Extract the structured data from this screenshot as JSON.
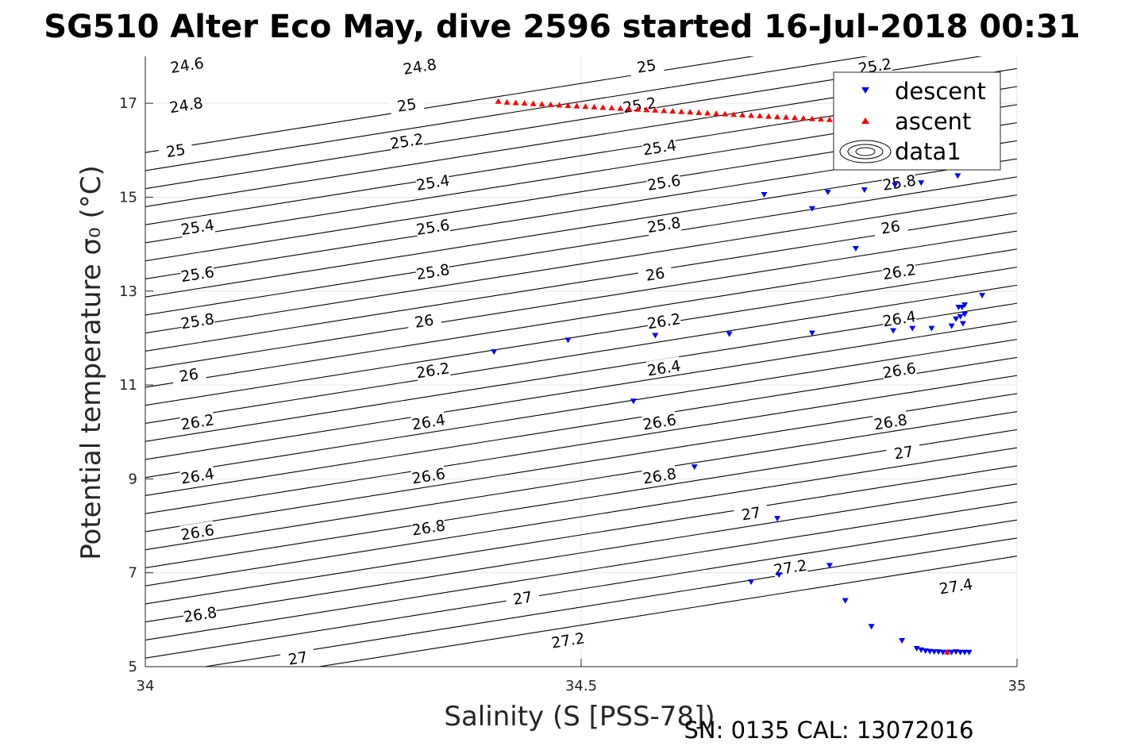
{
  "chart_data": {
    "type": "scatter",
    "title": "SG510 Alter Eco May, dive 2596 started 16-Jul-2018 00:31",
    "xlabel": "Salinity (S [PSS-78])",
    "ylabel": "Potential temperature σ₀ (°C)",
    "xlim": [
      34,
      35
    ],
    "ylim": [
      5,
      18
    ],
    "xticks": [
      "34",
      "34.5",
      "35"
    ],
    "yticks": [
      "5",
      "7",
      "9",
      "11",
      "13",
      "15",
      "17"
    ],
    "grid": true,
    "legend_position": "top-right",
    "legend": [
      "descent",
      "ascent",
      "data1"
    ],
    "footer": "SN: 0135  CAL: 13072016",
    "colors": {
      "descent": "#0000ff",
      "ascent": "#ff0000",
      "contour": "#000000",
      "grid": "#e6e6e6"
    },
    "contours": {
      "levels": [
        24.6,
        24.8,
        25.0,
        25.2,
        25.4,
        25.6,
        25.8,
        26.0,
        26.2,
        26.4,
        26.6,
        26.8,
        27.0,
        27.2,
        27.4
      ],
      "labels": [
        {
          "text": "24.6",
          "s": 34.048,
          "t": 17.8
        },
        {
          "text": "24.8",
          "s": 34.315,
          "t": 17.77
        },
        {
          "text": "25",
          "s": 34.575,
          "t": 17.78
        },
        {
          "text": "25.2",
          "s": 34.837,
          "t": 17.78
        },
        {
          "text": "24.8",
          "s": 34.047,
          "t": 16.95
        },
        {
          "text": "25",
          "s": 34.3,
          "t": 16.95
        },
        {
          "text": "25.2",
          "s": 34.567,
          "t": 16.95
        },
        {
          "text": "25",
          "s": 34.035,
          "t": 15.98
        },
        {
          "text": "25.2",
          "s": 34.3,
          "t": 16.18
        },
        {
          "text": "25.4",
          "s": 34.59,
          "t": 16.05
        },
        {
          "text": "25.4",
          "s": 34.33,
          "t": 15.3
        },
        {
          "text": "25.6",
          "s": 34.595,
          "t": 15.3
        },
        {
          "text": "25.8",
          "s": 34.865,
          "t": 15.3
        },
        {
          "text": "25.4",
          "s": 34.06,
          "t": 14.35
        },
        {
          "text": "25.6",
          "s": 34.33,
          "t": 14.35
        },
        {
          "text": "25.8",
          "s": 34.595,
          "t": 14.4
        },
        {
          "text": "26",
          "s": 34.855,
          "t": 14.35
        },
        {
          "text": "25.6",
          "s": 34.06,
          "t": 13.35
        },
        {
          "text": "25.8",
          "s": 34.33,
          "t": 13.4
        },
        {
          "text": "26",
          "s": 34.585,
          "t": 13.35
        },
        {
          "text": "26.2",
          "s": 34.865,
          "t": 13.4
        },
        {
          "text": "25.8",
          "s": 34.06,
          "t": 12.35
        },
        {
          "text": "26",
          "s": 34.32,
          "t": 12.35
        },
        {
          "text": "26.2",
          "s": 34.595,
          "t": 12.35
        },
        {
          "text": "26.4",
          "s": 34.865,
          "t": 12.4
        },
        {
          "text": "26",
          "s": 34.05,
          "t": 11.2
        },
        {
          "text": "26.2",
          "s": 34.33,
          "t": 11.3
        },
        {
          "text": "26.4",
          "s": 34.595,
          "t": 11.35
        },
        {
          "text": "26.6",
          "s": 34.865,
          "t": 11.3
        },
        {
          "text": "26.2",
          "s": 34.06,
          "t": 10.2
        },
        {
          "text": "26.4",
          "s": 34.325,
          "t": 10.2
        },
        {
          "text": "26.6",
          "s": 34.59,
          "t": 10.2
        },
        {
          "text": "26.8",
          "s": 34.855,
          "t": 10.2
        },
        {
          "text": "26.4",
          "s": 34.06,
          "t": 9.05
        },
        {
          "text": "26.6",
          "s": 34.325,
          "t": 9.05
        },
        {
          "text": "26.8",
          "s": 34.59,
          "t": 9.05
        },
        {
          "text": "27",
          "s": 34.87,
          "t": 9.55
        },
        {
          "text": "26.6",
          "s": 34.06,
          "t": 7.85
        },
        {
          "text": "26.8",
          "s": 34.325,
          "t": 7.95
        },
        {
          "text": "27",
          "s": 34.695,
          "t": 8.25
        },
        {
          "text": "27.2",
          "s": 34.74,
          "t": 7.1
        },
        {
          "text": "26.8",
          "s": 34.063,
          "t": 6.1
        },
        {
          "text": "27",
          "s": 34.433,
          "t": 6.45
        },
        {
          "text": "27.4",
          "s": 34.93,
          "t": 6.7
        },
        {
          "text": "27",
          "s": 34.175,
          "t": 5.17
        },
        {
          "text": "27.2",
          "s": 34.485,
          "t": 5.55
        }
      ]
    },
    "series": [
      {
        "name": "descent",
        "marker": "triangle-down",
        "points": [
          [
            34.4,
            11.7
          ],
          [
            34.485,
            11.95
          ],
          [
            34.585,
            12.05
          ],
          [
            34.67,
            12.08
          ],
          [
            34.56,
            10.65
          ],
          [
            34.63,
            9.25
          ],
          [
            34.71,
            15.05
          ],
          [
            34.765,
            14.75
          ],
          [
            34.783,
            15.1
          ],
          [
            34.825,
            15.15
          ],
          [
            34.815,
            13.9
          ],
          [
            34.765,
            12.1
          ],
          [
            34.86,
            15.25
          ],
          [
            34.89,
            15.3
          ],
          [
            34.932,
            15.45
          ],
          [
            34.858,
            12.15
          ],
          [
            34.88,
            12.2
          ],
          [
            34.902,
            12.2
          ],
          [
            34.925,
            12.25
          ],
          [
            34.938,
            12.3
          ],
          [
            34.93,
            12.4
          ],
          [
            34.935,
            12.45
          ],
          [
            34.94,
            12.5
          ],
          [
            34.933,
            12.65
          ],
          [
            34.937,
            12.65
          ],
          [
            34.94,
            12.7
          ],
          [
            34.96,
            12.9
          ],
          [
            34.725,
            8.15
          ],
          [
            34.785,
            7.15
          ],
          [
            34.695,
            6.8
          ],
          [
            34.727,
            6.95
          ],
          [
            34.803,
            6.4
          ],
          [
            34.833,
            5.85
          ],
          [
            34.868,
            5.55
          ],
          [
            34.885,
            5.38
          ],
          [
            34.89,
            5.35
          ],
          [
            34.895,
            5.33
          ],
          [
            34.9,
            5.32
          ],
          [
            34.905,
            5.31
          ],
          [
            34.91,
            5.31
          ],
          [
            34.915,
            5.3
          ],
          [
            34.92,
            5.3
          ],
          [
            34.925,
            5.3
          ],
          [
            34.93,
            5.31
          ],
          [
            34.935,
            5.3
          ],
          [
            34.94,
            5.3
          ],
          [
            34.945,
            5.3
          ]
        ]
      },
      {
        "name": "ascent",
        "marker": "triangle-up",
        "points": [
          [
            34.405,
            17.05
          ],
          [
            34.415,
            17.03
          ],
          [
            34.425,
            17.02
          ],
          [
            34.435,
            17.01
          ],
          [
            34.445,
            17.0
          ],
          [
            34.455,
            16.99
          ],
          [
            34.465,
            16.98
          ],
          [
            34.475,
            16.97
          ],
          [
            34.485,
            16.96
          ],
          [
            34.495,
            16.95
          ],
          [
            34.505,
            16.94
          ],
          [
            34.515,
            16.93
          ],
          [
            34.525,
            16.92
          ],
          [
            34.535,
            16.91
          ],
          [
            34.545,
            16.9
          ],
          [
            34.555,
            16.89
          ],
          [
            34.565,
            16.88
          ],
          [
            34.575,
            16.87
          ],
          [
            34.585,
            16.86
          ],
          [
            34.595,
            16.85
          ],
          [
            34.605,
            16.84
          ],
          [
            34.615,
            16.83
          ],
          [
            34.625,
            16.82
          ],
          [
            34.635,
            16.81
          ],
          [
            34.645,
            16.8
          ],
          [
            34.655,
            16.79
          ],
          [
            34.665,
            16.78
          ],
          [
            34.675,
            16.77
          ],
          [
            34.685,
            16.76
          ],
          [
            34.695,
            16.75
          ],
          [
            34.705,
            16.74
          ],
          [
            34.715,
            16.73
          ],
          [
            34.725,
            16.72
          ],
          [
            34.735,
            16.71
          ],
          [
            34.745,
            16.7
          ],
          [
            34.755,
            16.69
          ],
          [
            34.765,
            16.68
          ],
          [
            34.775,
            16.67
          ],
          [
            34.785,
            16.66
          ],
          [
            34.795,
            16.65
          ],
          [
            34.805,
            16.64
          ],
          [
            34.815,
            16.63
          ],
          [
            34.825,
            16.62
          ],
          [
            34.835,
            16.61
          ],
          [
            34.92,
            5.32
          ]
        ]
      }
    ]
  }
}
